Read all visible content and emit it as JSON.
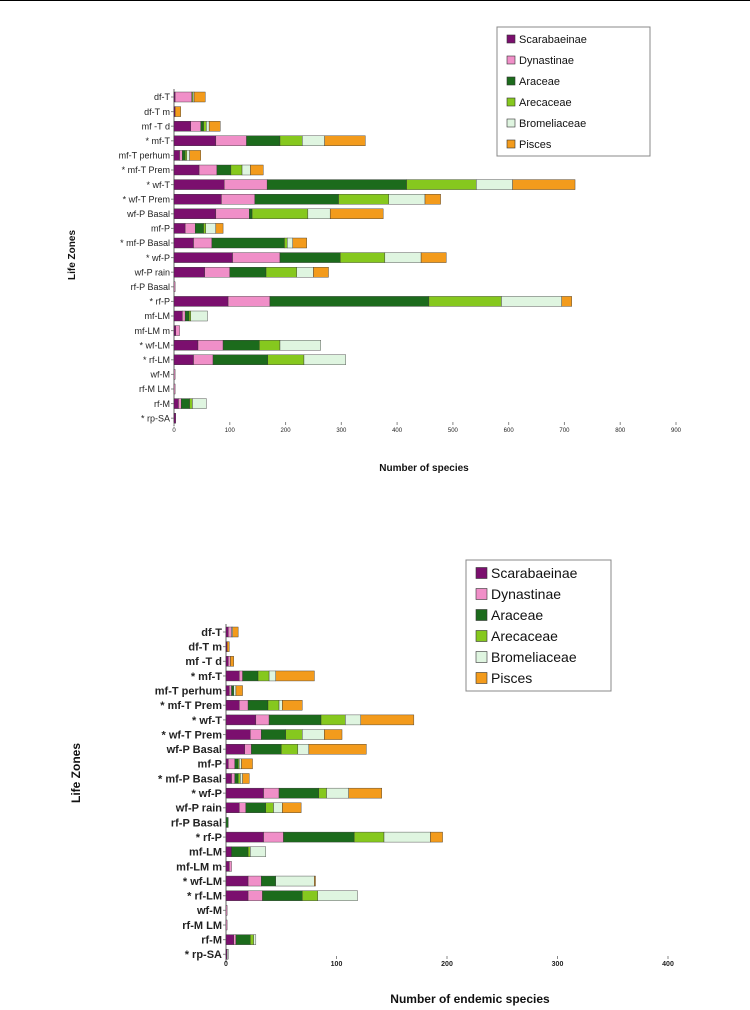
{
  "legend_colors": {
    "Scarabaeinae": "#7b0f6e",
    "Dynastinae": "#f08fc8",
    "Araceae": "#1c6b1c",
    "Arecaceae": "#86c81e",
    "Bromeliaceae": "#dff5e0",
    "Pisces": "#f39b1c"
  },
  "chart_data": [
    {
      "type": "bar",
      "orientation": "horizontal",
      "stacked": true,
      "xlabel": "Number of species",
      "ylabel": "Life Zones",
      "xlim": [
        0,
        900
      ],
      "xticks": [
        0,
        100,
        200,
        300,
        400,
        500,
        600,
        700,
        800,
        900
      ],
      "legend_position": "top-right",
      "categories": [
        "df-T",
        "df-T m",
        "mf -T d",
        "* mf-T",
        "mf-T perhum",
        "* mf-T Prem",
        "* wf-T",
        "* wf-T Prem",
        "wf-P Basal",
        "mf-P",
        "* mf-P Basal",
        "* wf-P",
        "wf-P rain",
        "rf-P Basal",
        "* rf-P",
        "mf-LM",
        "mf-LM m",
        "* wf-LM",
        "* rf-LM",
        "wf-M",
        "rf-M LM",
        "rf-M",
        "* rp-SA"
      ],
      "series": [
        {
          "name": "Scarabaeinae",
          "values": [
            2,
            2,
            30,
            75,
            10,
            45,
            90,
            85,
            75,
            20,
            35,
            105,
            55,
            0,
            97,
            15,
            3,
            43,
            35,
            0,
            0,
            8,
            3
          ]
        },
        {
          "name": "Dynastinae",
          "values": [
            30,
            0,
            18,
            55,
            5,
            32,
            77,
            60,
            60,
            18,
            33,
            85,
            45,
            2,
            75,
            5,
            7,
            45,
            35,
            2,
            2,
            5,
            0
          ]
        },
        {
          "name": "Araceae",
          "values": [
            0,
            0,
            5,
            60,
            5,
            25,
            250,
            150,
            5,
            15,
            130,
            108,
            65,
            0,
            285,
            7,
            0,
            65,
            98,
            0,
            0,
            15,
            0
          ]
        },
        {
          "name": "Arecaceae",
          "values": [
            2,
            0,
            5,
            40,
            3,
            20,
            125,
            90,
            100,
            4,
            5,
            80,
            55,
            0,
            130,
            3,
            0,
            37,
            65,
            0,
            0,
            5,
            0
          ]
        },
        {
          "name": "Bromeliaceae",
          "values": [
            2,
            0,
            5,
            40,
            5,
            15,
            65,
            65,
            40,
            18,
            10,
            65,
            30,
            0,
            108,
            30,
            0,
            73,
            75,
            0,
            0,
            25,
            0
          ]
        },
        {
          "name": "Pisces",
          "values": [
            20,
            10,
            20,
            73,
            20,
            23,
            112,
            28,
            95,
            13,
            25,
            45,
            27,
            0,
            18,
            0,
            0,
            0,
            0,
            0,
            0,
            0,
            0
          ]
        }
      ]
    },
    {
      "type": "bar",
      "orientation": "horizontal",
      "stacked": true,
      "xlabel": "Number of endemic species",
      "ylabel": "Life Zones",
      "xlim": [
        0,
        400
      ],
      "xticks": [
        0,
        100,
        200,
        300,
        400
      ],
      "legend_position": "top-right",
      "categories": [
        "df-T",
        "df-T m",
        "mf -T d",
        "* mf-T",
        "mf-T perhum",
        "* mf-T Prem",
        "* wf-T",
        "* wf-T Prem",
        "wf-P Basal",
        "mf-P",
        "* mf-P Basal",
        "* wf-P",
        "wf-P rain",
        "rf-P Basal",
        "* rf-P",
        "mf-LM",
        "mf-LM m",
        "* wf-LM",
        "* rf-LM",
        "wf-M",
        "rf-M LM",
        "rf-M",
        "* rp-SA"
      ],
      "series": [
        {
          "name": "Scarabaeinae",
          "values": [
            2,
            1,
            2,
            12,
            3,
            12,
            27,
            22,
            17,
            2,
            5,
            34,
            12,
            0,
            34,
            5,
            3,
            20,
            20,
            0,
            0,
            7,
            1
          ]
        },
        {
          "name": "Dynastinae",
          "values": [
            3,
            0,
            2,
            3,
            2,
            8,
            12,
            10,
            6,
            6,
            3,
            14,
            6,
            0,
            18,
            0,
            2,
            12,
            13,
            1,
            1,
            2,
            0
          ]
        },
        {
          "name": "Araceae",
          "values": [
            0,
            0,
            0,
            14,
            2,
            18,
            47,
            22,
            27,
            3,
            3,
            36,
            18,
            2,
            64,
            15,
            0,
            13,
            36,
            0,
            0,
            13,
            0
          ]
        },
        {
          "name": "Arecaceae",
          "values": [
            0,
            0,
            0,
            10,
            0,
            10,
            22,
            15,
            15,
            1,
            2,
            7,
            7,
            0,
            27,
            2,
            0,
            0,
            14,
            0,
            0,
            3,
            0
          ]
        },
        {
          "name": "Bromeliaceae",
          "values": [
            1,
            0,
            0,
            6,
            2,
            3,
            14,
            20,
            10,
            2,
            2,
            20,
            8,
            0,
            42,
            14,
            0,
            35,
            36,
            0,
            0,
            2,
            1
          ]
        },
        {
          "name": "Pisces",
          "values": [
            5,
            2,
            3,
            35,
            6,
            18,
            48,
            16,
            52,
            10,
            6,
            30,
            17,
            0,
            11,
            0,
            0,
            1,
            0,
            0,
            0,
            0,
            0
          ]
        }
      ]
    }
  ]
}
